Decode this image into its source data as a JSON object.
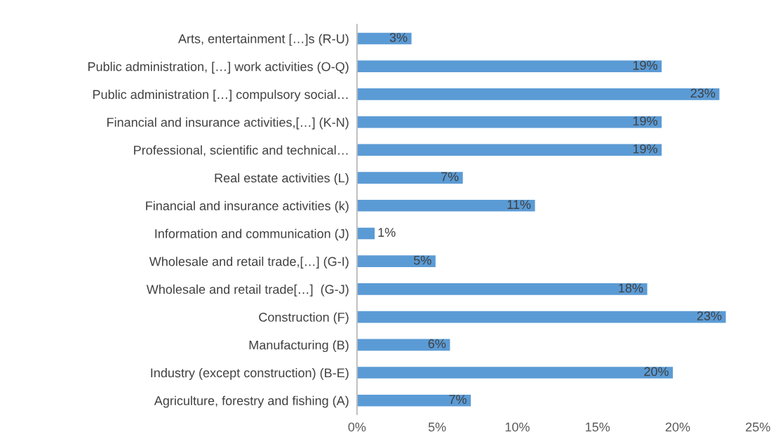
{
  "chart_data": {
    "type": "bar",
    "orientation": "horizontal",
    "categories": [
      "Arts, entertainment […]s (R-U)",
      "Public administration, […] work activities (O-Q)",
      "Public administration […] compulsory social…",
      "Financial and insurance activities,[…] (K-N)",
      "Professional, scientific and technical…",
      "Real estate activities (L)",
      "Financial and insurance activities (k)",
      "Information and communication (J)",
      "Wholesale and retail trade,[…] (G-I)",
      "Wholesale and retail trade[…]  (G-J)",
      "Construction (F)",
      "Manufacturing (B)",
      "Industry (except construction) (B-E)",
      "Agriculture, forestry and fishing (A)"
    ],
    "values": [
      3.4,
      19.0,
      22.6,
      19.0,
      19.0,
      6.6,
      11.1,
      1.1,
      4.9,
      18.1,
      23.0,
      5.8,
      19.7,
      7.1
    ],
    "value_labels": [
      "3%",
      "19%",
      "23%",
      "19%",
      "19%",
      "7%",
      "11%",
      "1%",
      "5%",
      "18%",
      "23%",
      "6%",
      "20%",
      "7%"
    ],
    "color": "#5b9bd5",
    "xlim": [
      0,
      25
    ],
    "xticks": [
      {
        "value": 0,
        "label": "0%"
      },
      {
        "value": 5,
        "label": "5%"
      },
      {
        "value": 10,
        "label": "10%"
      },
      {
        "value": 15,
        "label": "15%"
      },
      {
        "value": 20,
        "label": "20%"
      },
      {
        "value": 25,
        "label": "25%"
      }
    ],
    "grid": false,
    "legend": false
  }
}
